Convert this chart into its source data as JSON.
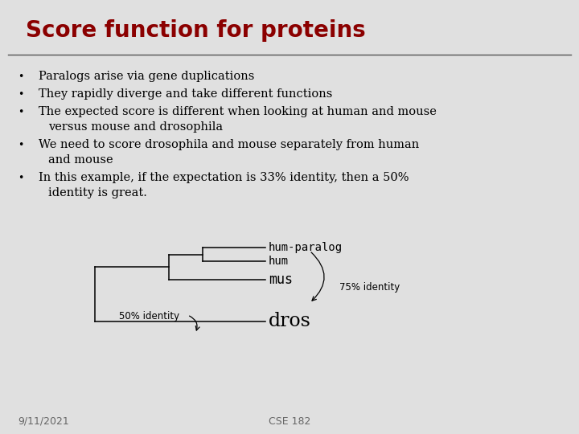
{
  "title": "Score function for proteins",
  "title_color": "#8B0000",
  "title_fontsize": 20,
  "bg_color": "#E0E0E0",
  "header_line_color": "#555555",
  "bullet_points": [
    "Paralogs arise via gene duplications",
    "They rapidly diverge and take different functions",
    "The expected score is different when looking at human and mouse\nversus mouse and drosophila",
    "We need to score drosophila and mouse separately from human\nand mouse",
    "In this example, if the expectation is 33% identity, then a 50%\nidentity is great."
  ],
  "bullet_fontsize": 10.5,
  "bullet_color": "#000000",
  "tree_labels": [
    "hum-paralog",
    "hum",
    "mus",
    "dros"
  ],
  "annotation_75": "75% identity",
  "annotation_50": "50% identity",
  "footer_left": "9/11/2021",
  "footer_right": "CSE 182",
  "footer_color": "#666666",
  "footer_fontsize": 9
}
